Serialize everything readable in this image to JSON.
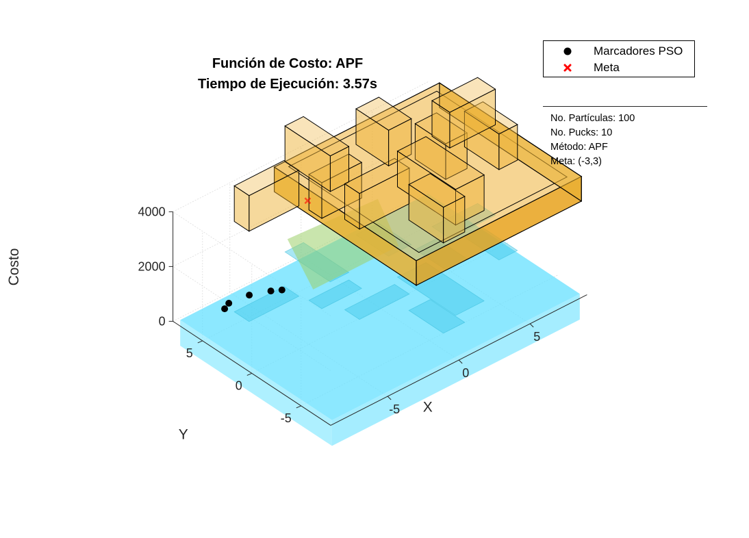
{
  "title": [
    "Función de Costo: APF",
    "Tiempo de Ejecución: 3.57s"
  ],
  "legend": {
    "position": "top-right",
    "items": [
      {
        "label": "Marcadores PSO",
        "marker": "filled-circle",
        "color": "#000000"
      },
      {
        "label": "Meta",
        "marker": "x-cross",
        "color": "#ff0000"
      }
    ]
  },
  "info_panel": [
    "No. Partículas: 100",
    "No. Pucks: 10",
    "Método: APF",
    "Meta: (-3,3)"
  ],
  "colors": {
    "arena": "#eeb33a",
    "arena_edge": "#000000",
    "surface": "#66e0ff",
    "markers": "#000000",
    "goal": "#ff0000"
  },
  "chart_data": {
    "type": "surface",
    "projection": "3d",
    "xlabel": "X",
    "ylabel": "Y",
    "zlabel": "Costo",
    "xlim": [
      -9,
      9
    ],
    "ylim": [
      -8,
      8
    ],
    "zlim": [
      0,
      4000
    ],
    "x_ticks": [
      "-5",
      "0",
      "5"
    ],
    "y_ticks": [
      "-5",
      "0",
      "5"
    ],
    "z_ticks": [
      "0",
      "2000",
      "4000"
    ],
    "grid": true,
    "goal": {
      "x": -3,
      "y": 3
    },
    "pso_markers": [
      {
        "x": -6.2,
        "y": 6.8,
        "z": 0
      },
      {
        "x": -5.7,
        "y": 7.1,
        "z": 0
      },
      {
        "x": -4.4,
        "y": 6.9,
        "z": 0
      },
      {
        "x": -3.3,
        "y": 6.3,
        "z": 0
      },
      {
        "x": -2.8,
        "y": 5.9,
        "z": 0
      }
    ],
    "obstacles": [
      {
        "x": -5.4,
        "y": 3.7,
        "w": 3.5,
        "d": 1.5
      },
      {
        "x": -2.1,
        "y": 1.5,
        "w": 2.8,
        "d": 1.3
      },
      {
        "x": -0.9,
        "y": 5.1,
        "w": 1.3,
        "d": 4.6
      },
      {
        "x": -0.9,
        "y": -1.0,
        "w": 3.5,
        "d": 1.5
      },
      {
        "x": 3.1,
        "y": 4.1,
        "w": 1.6,
        "d": 3.3
      },
      {
        "x": 4.5,
        "y": 0.3,
        "w": 1.5,
        "d": 3.1
      },
      {
        "x": 2.4,
        "y": -2.7,
        "w": 2.0,
        "d": 5.9
      },
      {
        "x": 0.6,
        "y": -4.9,
        "w": 1.5,
        "d": 3.5
      },
      {
        "x": 7.1,
        "y": -1.0,
        "w": 1.3,
        "d": 3.5
      },
      {
        "x": 7.4,
        "y": 2.2,
        "w": 3.2,
        "d": 1.8
      }
    ]
  }
}
